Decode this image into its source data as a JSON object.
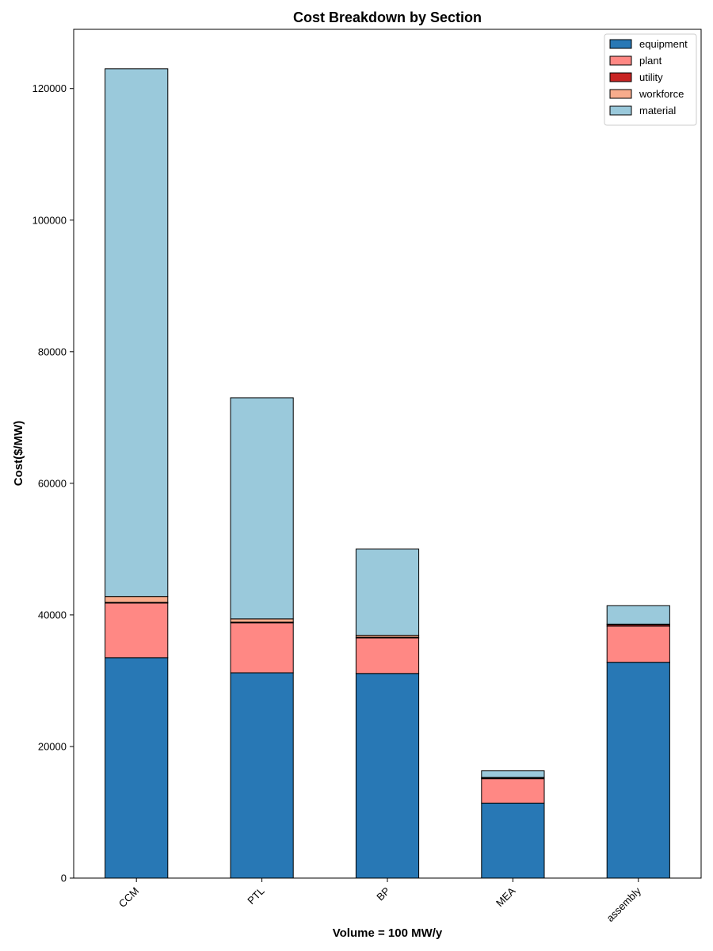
{
  "chart_data": {
    "type": "bar",
    "stacked": true,
    "title": "Cost Breakdown by Section",
    "xlabel": "Volume = 100 MW/y",
    "ylabel": "Cost($/MW)",
    "categories": [
      "CCM",
      "PTL",
      "BP",
      "MEA",
      "assembly"
    ],
    "ylim": [
      0,
      129000
    ],
    "yticks": [
      0,
      20000,
      40000,
      60000,
      80000,
      100000,
      120000
    ],
    "legend_position": "top-right",
    "grid": false,
    "series": [
      {
        "name": "equipment",
        "color": "#2878b5",
        "values": [
          33500,
          31200,
          31100,
          11400,
          32800
        ]
      },
      {
        "name": "plant",
        "color": "#ff8884",
        "values": [
          8300,
          7600,
          5400,
          3700,
          5500
        ]
      },
      {
        "name": "utility",
        "color": "#c82423",
        "values": [
          100,
          100,
          100,
          100,
          200
        ]
      },
      {
        "name": "workforce",
        "color": "#f8ac8c",
        "values": [
          900,
          500,
          300,
          100,
          100
        ]
      },
      {
        "name": "material",
        "color": "#9ac9db",
        "values": [
          80200,
          33600,
          13100,
          1000,
          2800
        ]
      }
    ]
  }
}
